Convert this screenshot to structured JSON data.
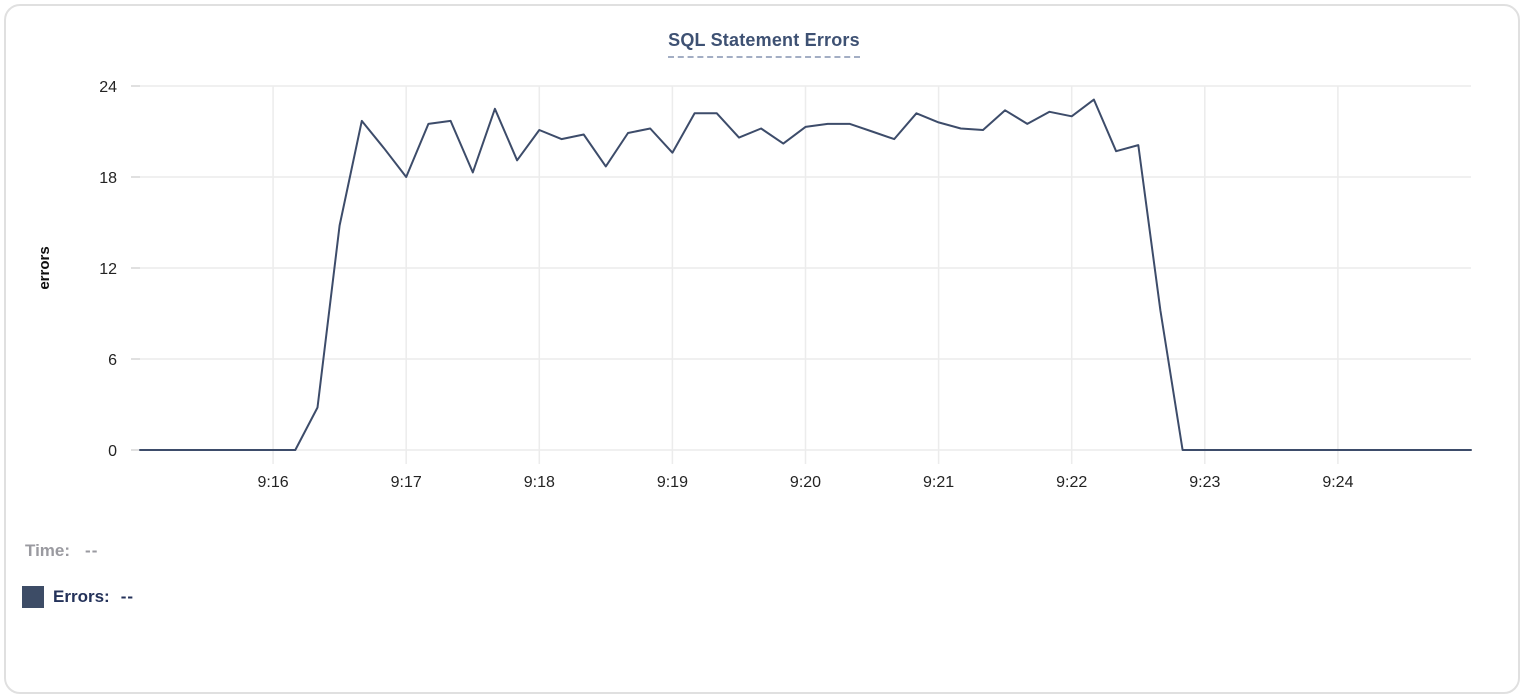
{
  "header": {
    "title": "SQL Statement Errors"
  },
  "tooltip_readout": {
    "time_label": "Time:",
    "time_value": "--",
    "errors_label": "Errors:",
    "errors_value": "--"
  },
  "colors": {
    "line": "#3d4c6a",
    "grid": "#ececec",
    "axis_tick": "#e0e0e0",
    "swatch": "#3d4c66",
    "title": "#3e5173",
    "title_underline": "#a3aec4",
    "legend_muted": "#9a9aa0",
    "legend_dark": "#24325a"
  },
  "chart_data": {
    "type": "line",
    "title": "SQL Statement Errors",
    "xlabel": "",
    "ylabel": "errors",
    "grid": true,
    "legend_position": "bottom-left",
    "x_start": "9:15:00",
    "x_end": "9:25:00",
    "x_tick_labels": [
      "9:16",
      "9:17",
      "9:18",
      "9:19",
      "9:20",
      "9:21",
      "9:22",
      "9:23",
      "9:24"
    ],
    "y_ticks": [
      0,
      6,
      12,
      18,
      24
    ],
    "ylim": [
      0,
      24
    ],
    "series": [
      {
        "name": "Errors",
        "color": "#3d4c6a",
        "start_time": "9:15:00",
        "step_seconds": 10,
        "values": [
          0,
          0,
          0,
          0,
          0,
          0,
          0,
          0,
          2.8,
          14.8,
          21.7,
          19.9,
          18,
          21.5,
          21.7,
          18.3,
          22.5,
          19.1,
          21.1,
          20.5,
          20.8,
          18.7,
          20.9,
          21.2,
          19.6,
          22.2,
          22.2,
          20.6,
          21.2,
          20.2,
          21.3,
          21.5,
          21.5,
          21,
          20.5,
          22.2,
          21.6,
          21.2,
          21.1,
          22.4,
          21.5,
          22.3,
          22,
          23.1,
          19.7,
          20.1,
          9.2,
          0,
          0,
          0,
          0,
          0,
          0,
          0,
          0,
          0,
          0,
          0,
          0,
          0,
          0
        ]
      }
    ]
  }
}
